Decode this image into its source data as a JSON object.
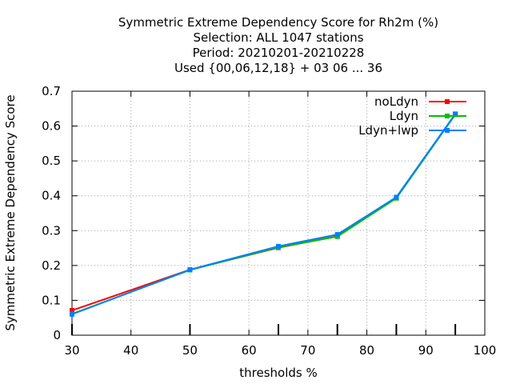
{
  "chart_data": {
    "type": "line",
    "title_lines": [
      "Symmetric Extreme Dependency Score  for Rh2m (%)",
      "Selection: ALL   1047 stations",
      "Period: 20210201-20210228",
      "Used {00,06,12,18} + 03 06 ... 36"
    ],
    "xlabel": "thresholds %",
    "ylabel": "Symmetric Extreme Dependency Score",
    "xlim": [
      30,
      100
    ],
    "ylim": [
      0,
      0.7
    ],
    "x_ticks": [
      30,
      40,
      50,
      60,
      70,
      80,
      90,
      100
    ],
    "y_ticks": [
      0,
      0.1,
      0.2,
      0.3,
      0.4,
      0.5,
      0.6,
      0.7
    ],
    "x_tick_labels": [
      "30",
      "40",
      "50",
      "60",
      "70",
      "80",
      "90",
      "100"
    ],
    "y_tick_labels": [
      "0",
      "0.1",
      "0.2",
      "0.3",
      "0.4",
      "0.5",
      "0.6",
      "0.7"
    ],
    "grid": true,
    "legend_position": "top-right",
    "x": [
      30,
      50,
      65,
      75,
      85,
      95
    ],
    "series": [
      {
        "name": "noLdyn",
        "color": "#ff0000",
        "values": [
          0.071,
          0.188,
          0.251,
          0.284,
          0.394,
          0.634
        ]
      },
      {
        "name": "Ldyn",
        "color": "#00c000",
        "values": [
          0.061,
          0.187,
          0.252,
          0.283,
          0.393,
          0.633
        ]
      },
      {
        "name": "Ldyn+lwp",
        "color": "#0080ff",
        "values": [
          0.06,
          0.188,
          0.255,
          0.289,
          0.396,
          0.635
        ]
      }
    ]
  }
}
